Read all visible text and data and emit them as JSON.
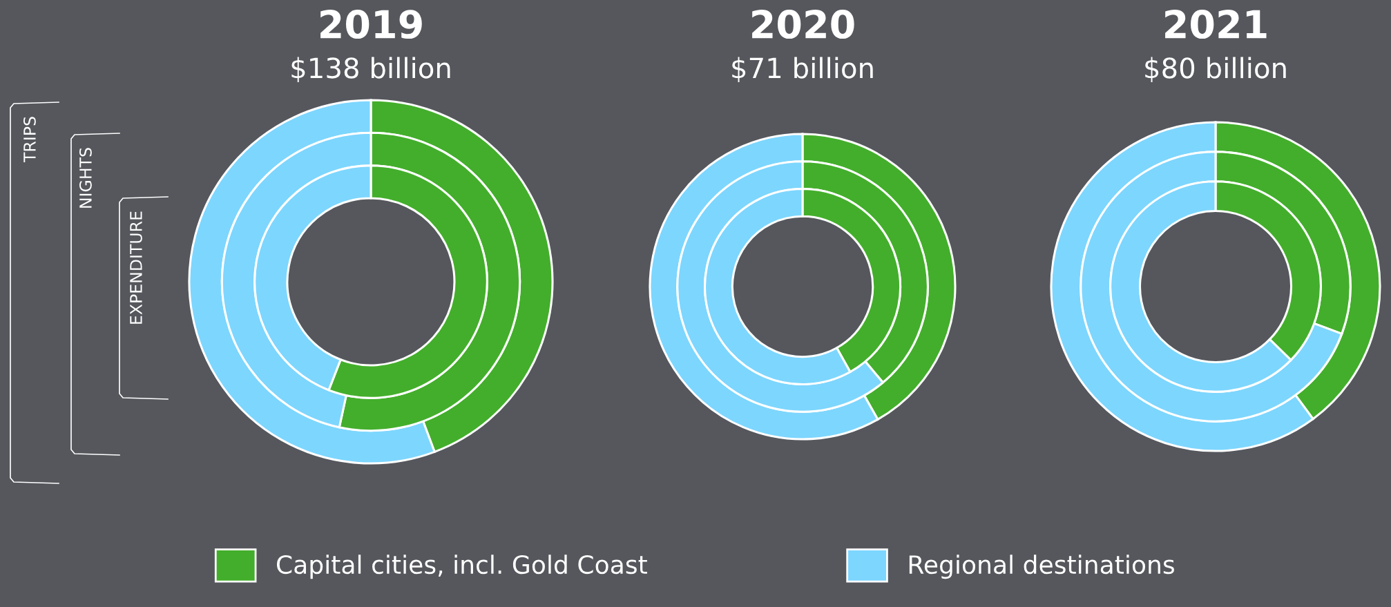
{
  "chart_data": [
    {
      "type": "donut",
      "title": "2019",
      "subtitle": "$138 billion",
      "categories": [
        "Capital cities, incl. Gold Coast",
        "Regional destinations"
      ],
      "colors": [
        "#43ae2b",
        "#7dd6fe"
      ],
      "legend": "bottom",
      "annotations": [
        "TRIPS",
        "NIGHTS",
        "EXPENDITURE"
      ],
      "series": [
        {
          "values": [
            44.3,
            55.7
          ]
        },
        {
          "values": [
            53.4,
            46.6
          ]
        },
        {
          "values": [
            55.9,
            44.1
          ]
        }
      ]
    },
    {
      "type": "donut",
      "title": "2020",
      "subtitle": "$71 billion",
      "categories": [
        null,
        null
      ],
      "colors": [
        "#43ae2b",
        "#7dd6fe"
      ],
      "series": [
        {
          "values": [
            41.8,
            58.2
          ]
        },
        {
          "values": [
            38.9,
            61.1
          ]
        },
        {
          "values": [
            41.9,
            58.1
          ]
        }
      ]
    },
    {
      "type": "donut",
      "title": "2021",
      "subtitle": "$80 billion",
      "categories": [
        null,
        null
      ],
      "colors": [
        "#43ae2b",
        "#7dd6fe"
      ],
      "series": [
        {
          "values": [
            39.9,
            60.1
          ]
        },
        {
          "values": [
            30.7,
            69.3
          ]
        },
        {
          "values": [
            37.3,
            62.7
          ]
        }
      ]
    }
  ]
}
